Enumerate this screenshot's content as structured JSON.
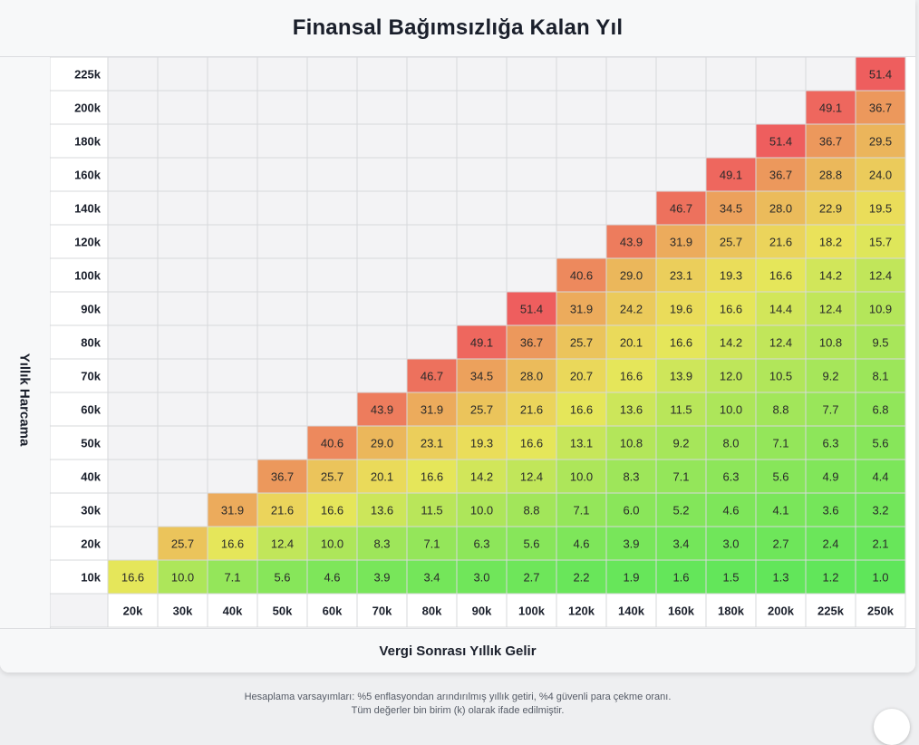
{
  "page": {
    "title": "Finansal Bağımsızlığa Kalan Yıl",
    "notes": [
      "Hesaplama varsayımları: %5 enflasyondan arındırılmış yıllık getiri, %4 güvenli para çekme oranı.",
      "Tüm değerler bin birim (k) olarak ifade edilmiştir."
    ]
  },
  "chart_data": {
    "type": "heatmap",
    "title": "Finansal Bağımsızlığa Kalan Yıl",
    "xlabel": "Vergi Sonrası Yıllık Gelir",
    "ylabel": "Yıllık Harcama",
    "x_categories": [
      "20k",
      "30k",
      "40k",
      "50k",
      "60k",
      "70k",
      "80k",
      "90k",
      "100k",
      "120k",
      "140k",
      "160k",
      "180k",
      "200k",
      "225k",
      "250k"
    ],
    "y_categories": [
      "10k",
      "20k",
      "30k",
      "40k",
      "50k",
      "60k",
      "70k",
      "80k",
      "90k",
      "100k",
      "120k",
      "140k",
      "160k",
      "180k",
      "200k",
      "225k"
    ],
    "colors": {
      "low": "#5fe65a",
      "mid": "#eae65a",
      "high": "#ee5e5e",
      "empty": "#f3f3f5",
      "grid": "#d7d8db"
    },
    "color_scale_max": 51.4,
    "values": [
      [
        16.6,
        10.0,
        7.1,
        5.6,
        4.6,
        3.9,
        3.4,
        3.0,
        2.7,
        2.2,
        1.9,
        1.6,
        1.5,
        1.3,
        1.2,
        1.0
      ],
      [
        null,
        25.7,
        16.6,
        12.4,
        10.0,
        8.3,
        7.1,
        6.3,
        5.6,
        4.6,
        3.9,
        3.4,
        3.0,
        2.7,
        2.4,
        2.1
      ],
      [
        null,
        null,
        31.9,
        21.6,
        16.6,
        13.6,
        11.5,
        10.0,
        8.8,
        7.1,
        6.0,
        5.2,
        4.6,
        4.1,
        3.6,
        3.2
      ],
      [
        null,
        null,
        null,
        36.7,
        25.7,
        20.1,
        16.6,
        14.2,
        12.4,
        10.0,
        8.3,
        7.1,
        6.3,
        5.6,
        4.9,
        4.4
      ],
      [
        null,
        null,
        null,
        null,
        40.6,
        29.0,
        23.1,
        19.3,
        16.6,
        13.1,
        10.8,
        9.2,
        8.0,
        7.1,
        6.3,
        5.6
      ],
      [
        null,
        null,
        null,
        null,
        null,
        43.9,
        31.9,
        25.7,
        21.6,
        16.6,
        13.6,
        11.5,
        10.0,
        8.8,
        7.7,
        6.8
      ],
      [
        null,
        null,
        null,
        null,
        null,
        null,
        46.7,
        34.5,
        28.0,
        20.7,
        16.6,
        13.9,
        12.0,
        10.5,
        9.2,
        8.1
      ],
      [
        null,
        null,
        null,
        null,
        null,
        null,
        null,
        49.1,
        36.7,
        25.7,
        20.1,
        16.6,
        14.2,
        12.4,
        10.8,
        9.5
      ],
      [
        null,
        null,
        null,
        null,
        null,
        null,
        null,
        null,
        51.4,
        31.9,
        24.2,
        19.6,
        16.6,
        14.4,
        12.4,
        10.9
      ],
      [
        null,
        null,
        null,
        null,
        null,
        null,
        null,
        null,
        null,
        40.6,
        29.0,
        23.1,
        19.3,
        16.6,
        14.2,
        12.4
      ],
      [
        null,
        null,
        null,
        null,
        null,
        null,
        null,
        null,
        null,
        null,
        43.9,
        31.9,
        25.7,
        21.6,
        18.2,
        15.7
      ],
      [
        null,
        null,
        null,
        null,
        null,
        null,
        null,
        null,
        null,
        null,
        null,
        46.7,
        34.5,
        28.0,
        22.9,
        19.5
      ],
      [
        null,
        null,
        null,
        null,
        null,
        null,
        null,
        null,
        null,
        null,
        null,
        null,
        49.1,
        36.7,
        28.8,
        24.0
      ],
      [
        null,
        null,
        null,
        null,
        null,
        null,
        null,
        null,
        null,
        null,
        null,
        null,
        null,
        51.4,
        36.7,
        29.5
      ],
      [
        null,
        null,
        null,
        null,
        null,
        null,
        null,
        null,
        null,
        null,
        null,
        null,
        null,
        null,
        49.1,
        36.7
      ],
      [
        null,
        null,
        null,
        null,
        null,
        null,
        null,
        null,
        null,
        null,
        null,
        null,
        null,
        null,
        null,
        51.4
      ]
    ]
  }
}
